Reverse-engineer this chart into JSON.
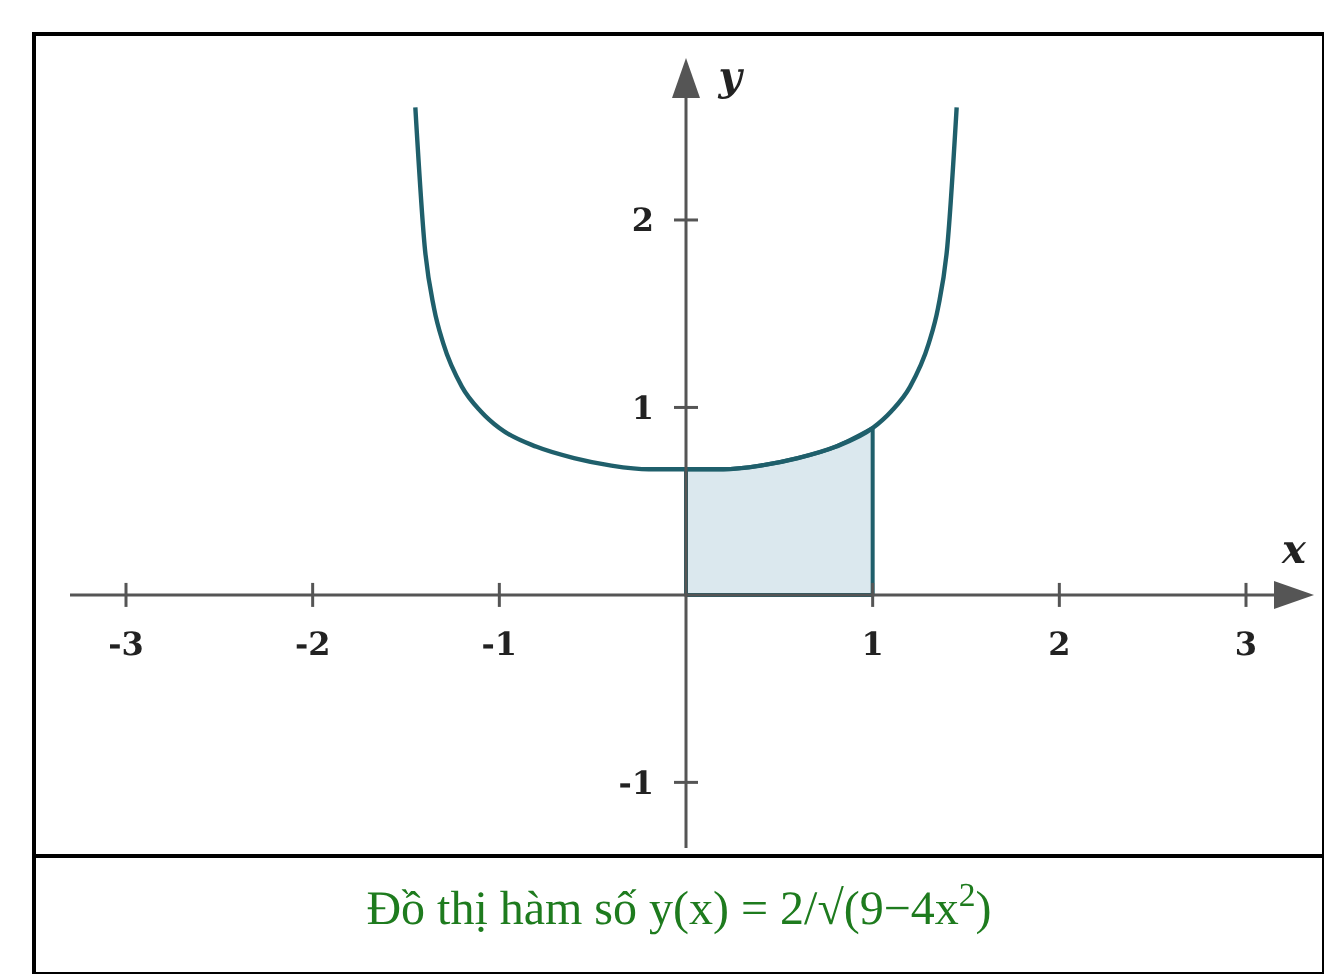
{
  "chart_data": {
    "type": "line",
    "xlabel": "x",
    "ylabel": "y",
    "xlim": [
      -3.3,
      3.3
    ],
    "ylim": [
      -1.35,
      2.8
    ],
    "xticks": [
      -3,
      -2,
      -1,
      1,
      2,
      3
    ],
    "yticks": [
      -1,
      1,
      2
    ],
    "grid": false,
    "line_style": "solid",
    "annotations": [
      "Đồ thị hàm số y(x) = 2/√(9−4x$^{2}$)"
    ],
    "series": [
      {
        "color": "#1f5f6b",
        "x": [
          -1.45,
          -1.4,
          -1.35,
          -1.3,
          -1.2,
          -1.1,
          -1,
          -0.8,
          -0.6,
          -0.4,
          -0.2,
          0,
          0.2,
          0.4,
          0.6,
          0.8,
          1,
          1.1,
          1.2,
          1.3,
          1.35,
          1.4,
          1.45
        ],
        "values": [
          2.6,
          1.86,
          1.53,
          1.34,
          1.11,
          0.98,
          0.89,
          0.79,
          0.73,
          0.69,
          0.67,
          0.67,
          0.67,
          0.69,
          0.73,
          0.79,
          0.89,
          0.98,
          1.11,
          1.34,
          1.53,
          1.86,
          2.6
        ]
      },
      {
        "type": "area",
        "color": "#dbe8ee",
        "x": [
          0,
          0.2,
          0.4,
          0.6,
          0.8,
          1
        ],
        "values": [
          0.67,
          0.67,
          0.69,
          0.73,
          0.79,
          0.89
        ]
      }
    ]
  }
}
